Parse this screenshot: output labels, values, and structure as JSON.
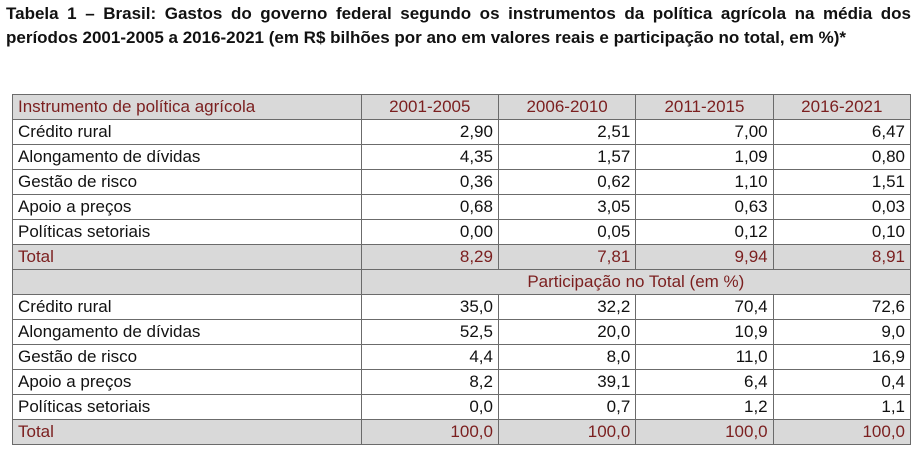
{
  "caption": "Tabela 1 – Brasil: Gastos do governo federal segundo os instrumentos da política agrícola na média dos períodos 2001-2005 a 2016-2021 (em R$ bilhões por ano em valores reais e participação no total, em %)*",
  "table": {
    "header_label": "Instrumento de política agrícola",
    "periods": [
      "2001-2005",
      "2006-2010",
      "2011-2015",
      "2016-2021"
    ],
    "values_rows": [
      {
        "label": "Crédito rural",
        "values": [
          "2,90",
          "2,51",
          "7,00",
          "6,47"
        ]
      },
      {
        "label": "Alongamento de dívidas",
        "values": [
          "4,35",
          "1,57",
          "1,09",
          "0,80"
        ]
      },
      {
        "label": "Gestão de risco",
        "values": [
          "0,36",
          "0,62",
          "1,10",
          "1,51"
        ]
      },
      {
        "label": "Apoio a preços",
        "values": [
          "0,68",
          "3,05",
          "0,63",
          "0,03"
        ]
      },
      {
        "label": "Políticas setoriais",
        "values": [
          "0,00",
          "0,05",
          "0,12",
          "0,10"
        ]
      }
    ],
    "values_total": {
      "label": "Total",
      "values": [
        "8,29",
        "7,81",
        "9,94",
        "8,91"
      ]
    },
    "share_title": "Participação no Total (em %)",
    "share_rows": [
      {
        "label": "Crédito rural",
        "values": [
          "35,0",
          "32,2",
          "70,4",
          "72,6"
        ]
      },
      {
        "label": "Alongamento de dívidas",
        "values": [
          "52,5",
          "20,0",
          "10,9",
          "9,0"
        ]
      },
      {
        "label": "Gestão de risco",
        "values": [
          "4,4",
          "8,0",
          "11,0",
          "16,9"
        ]
      },
      {
        "label": "Apoio a preços",
        "values": [
          "8,2",
          "39,1",
          "6,4",
          "0,4"
        ]
      },
      {
        "label": "Políticas setoriais",
        "values": [
          "0,0",
          "0,7",
          "1,2",
          "1,1"
        ]
      }
    ],
    "share_total": {
      "label": "Total",
      "values": [
        "100,0",
        "100,0",
        "100,0",
        "100,0"
      ]
    }
  },
  "colors": {
    "header_text": "#7b1f1f",
    "header_fill": "#d9d9d9",
    "border": "#6b6b6b"
  }
}
